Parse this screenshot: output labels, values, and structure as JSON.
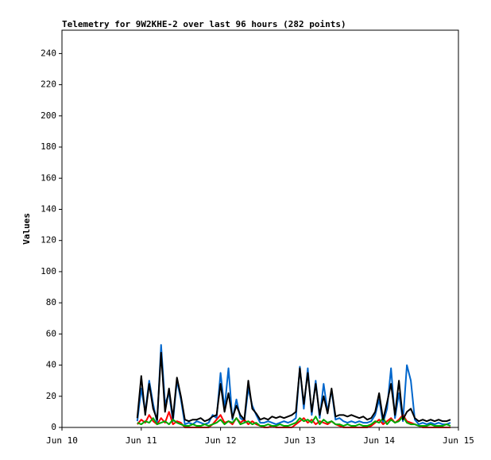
{
  "chart_data": {
    "type": "line",
    "title": "Telemetry for 9W2KHE-2 over last 96 hours (282 points)",
    "y_label": "Values",
    "xlim": [
      10,
      15
    ],
    "xticks": [
      {
        "value": 10,
        "label": "Jun 10"
      },
      {
        "value": 11,
        "label": "Jun 11"
      },
      {
        "value": 12,
        "label": "Jun 12"
      },
      {
        "value": 13,
        "label": "Jun 13"
      },
      {
        "value": 14,
        "label": "Jun 14"
      },
      {
        "value": 15,
        "label": "Jun 15"
      }
    ],
    "ylim": [
      0,
      255
    ],
    "yticks": [
      0,
      20,
      40,
      60,
      80,
      100,
      120,
      140,
      160,
      180,
      200,
      220,
      240
    ],
    "grid": false,
    "x": [
      10.95,
      11,
      11.05,
      11.1,
      11.15,
      11.2,
      11.25,
      11.3,
      11.35,
      11.4,
      11.45,
      11.5,
      11.55,
      11.6,
      11.65,
      11.7,
      11.75,
      11.8,
      11.85,
      11.9,
      11.95,
      12,
      12.05,
      12.1,
      12.15,
      12.2,
      12.25,
      12.3,
      12.35,
      12.4,
      12.45,
      12.5,
      12.55,
      12.6,
      12.65,
      12.7,
      12.75,
      12.8,
      12.85,
      12.9,
      12.95,
      13,
      13.05,
      13.1,
      13.15,
      13.2,
      13.25,
      13.3,
      13.35,
      13.4,
      13.45,
      13.5,
      13.55,
      13.6,
      13.65,
      13.7,
      13.75,
      13.8,
      13.85,
      13.9,
      13.95,
      14,
      14.05,
      14.1,
      14.15,
      14.2,
      14.25,
      14.3,
      14.35,
      14.4,
      14.45,
      14.5,
      14.55,
      14.6,
      14.65,
      14.7,
      14.75,
      14.8,
      14.85,
      14.9
    ],
    "series": [
      {
        "color": "#0066cc",
        "values": [
          4,
          25,
          10,
          30,
          15,
          3,
          53,
          15,
          22,
          4,
          30,
          18,
          2,
          3,
          2,
          4,
          3,
          2,
          3,
          8,
          6,
          35,
          12,
          38,
          5,
          18,
          6,
          4,
          25,
          14,
          8,
          3,
          3,
          4,
          3,
          2,
          3,
          4,
          3,
          4,
          6,
          39,
          12,
          38,
          8,
          30,
          6,
          28,
          10,
          24,
          5,
          6,
          4,
          3,
          4,
          3,
          4,
          3,
          3,
          4,
          8,
          18,
          3,
          12,
          38,
          6,
          22,
          4,
          40,
          30,
          5,
          2,
          3,
          2,
          3,
          2,
          3,
          2,
          2,
          3
        ]
      },
      {
        "color": "#ff0000",
        "values": [
          2,
          5,
          3,
          8,
          4,
          2,
          6,
          3,
          10,
          2,
          4,
          3,
          0,
          0,
          0,
          0,
          0,
          0,
          0,
          2,
          5,
          8,
          3,
          4,
          2,
          6,
          3,
          5,
          2,
          4,
          2,
          1,
          0,
          0,
          1,
          0,
          0,
          0,
          0,
          0,
          2,
          4,
          6,
          3,
          5,
          2,
          4,
          3,
          2,
          4,
          2,
          1,
          0,
          0,
          0,
          0,
          0,
          0,
          0,
          1,
          3,
          5,
          2,
          4,
          6,
          3,
          5,
          8,
          4,
          3,
          2,
          1,
          0,
          0,
          0,
          0,
          0,
          0,
          0,
          0
        ]
      },
      {
        "color": "#00aa00",
        "values": [
          3,
          2,
          4,
          3,
          6,
          2,
          3,
          4,
          2,
          5,
          3,
          2,
          1,
          1,
          2,
          1,
          1,
          2,
          1,
          2,
          3,
          5,
          2,
          4,
          3,
          6,
          2,
          3,
          4,
          2,
          3,
          1,
          1,
          2,
          1,
          1,
          2,
          1,
          1,
          2,
          3,
          6,
          4,
          5,
          3,
          7,
          2,
          5,
          3,
          4,
          2,
          2,
          1,
          2,
          1,
          1,
          2,
          1,
          1,
          2,
          4,
          3,
          6,
          2,
          5,
          3,
          4,
          7,
          3,
          2,
          2,
          1,
          1,
          1,
          2,
          1,
          1,
          1,
          2,
          1
        ]
      },
      {
        "color": "#000000",
        "values": [
          6,
          33,
          8,
          28,
          12,
          5,
          48,
          10,
          25,
          6,
          32,
          20,
          5,
          4,
          5,
          5,
          6,
          4,
          5,
          7,
          8,
          28,
          10,
          22,
          6,
          14,
          8,
          5,
          30,
          12,
          9,
          5,
          6,
          5,
          7,
          6,
          7,
          6,
          7,
          8,
          10,
          38,
          15,
          35,
          10,
          28,
          8,
          20,
          9,
          25,
          7,
          8,
          8,
          7,
          8,
          7,
          6,
          7,
          5,
          6,
          10,
          22,
          5,
          16,
          28,
          8,
          30,
          5,
          10,
          12,
          6,
          4,
          5,
          4,
          5,
          4,
          5,
          4,
          4,
          5
        ]
      }
    ]
  }
}
